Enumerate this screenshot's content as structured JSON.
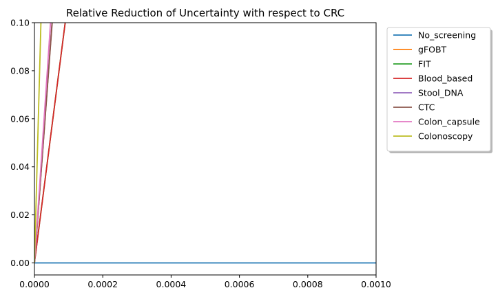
{
  "chart_data": {
    "type": "line",
    "title": "Relative Reduction of Uncertainty with respect to CRC",
    "xlabel": "",
    "ylabel": "",
    "xlim": [
      0.0,
      0.001
    ],
    "ylim": [
      -0.005,
      0.1
    ],
    "xticks": [
      "0.0000",
      "0.0002",
      "0.0004",
      "0.0006",
      "0.0008",
      "0.0010"
    ],
    "xtick_values": [
      0.0,
      0.0002,
      0.0004,
      0.0006,
      0.0008,
      0.001
    ],
    "yticks": [
      "0.00",
      "0.02",
      "0.04",
      "0.06",
      "0.08",
      "0.10"
    ],
    "ytick_values": [
      0.0,
      0.02,
      0.04,
      0.06,
      0.08,
      0.1
    ],
    "grid": false,
    "legend_position": "outside-right-top",
    "series": [
      {
        "name": "No_screening",
        "color": "#1f77b4",
        "x": [
          0.0,
          0.001
        ],
        "y": [
          0.0,
          0.0
        ]
      },
      {
        "name": "gFOBT",
        "color": "#ff7f0e",
        "x": [
          0.0,
          5.15e-05
        ],
        "y": [
          0.0,
          0.1
        ]
      },
      {
        "name": "FIT",
        "color": "#2ca02c",
        "x": [
          0.0,
          9e-05
        ],
        "y": [
          0.0,
          0.1
        ]
      },
      {
        "name": "Blood_based",
        "color": "#d62728",
        "x": [
          0.0,
          9e-05
        ],
        "y": [
          0.0,
          0.1
        ]
      },
      {
        "name": "Stool_DNA",
        "color": "#9467bd",
        "x": [
          0.0,
          5.15e-05
        ],
        "y": [
          0.0,
          0.1
        ]
      },
      {
        "name": "CTC",
        "color": "#8c564b",
        "x": [
          0.0,
          5.2e-05
        ],
        "y": [
          0.0,
          0.1
        ]
      },
      {
        "name": "Colon_capsule",
        "color": "#e377c2",
        "x": [
          0.0,
          4.7e-05
        ],
        "y": [
          0.0,
          0.1
        ]
      },
      {
        "name": "Colonoscopy",
        "color": "#bcbd22",
        "x": [
          0.0,
          1.9e-05
        ],
        "y": [
          0.0,
          0.1
        ]
      }
    ]
  }
}
